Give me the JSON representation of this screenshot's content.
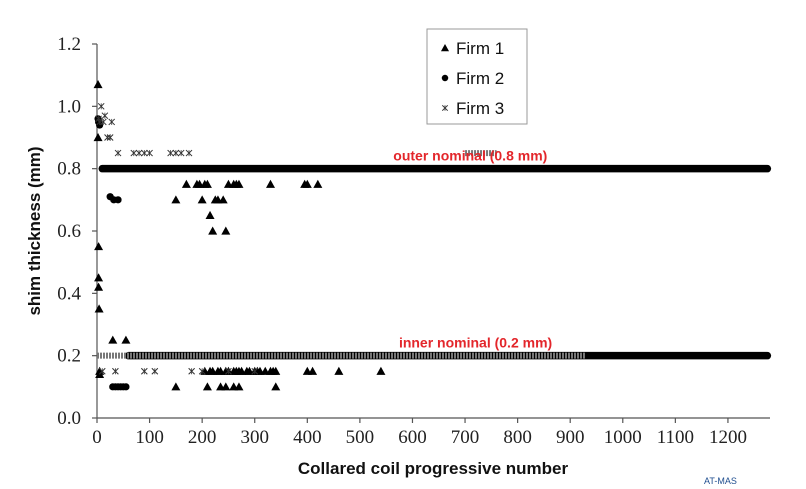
{
  "chart_data": {
    "type": "scatter",
    "xlabel": "Collared coil progressive number",
    "ylabel": "shim thickness (mm)",
    "xlim": [
      0,
      1280
    ],
    "ylim": [
      0,
      1.2
    ],
    "x_ticks": [
      "0",
      "100",
      "200",
      "300",
      "400",
      "500",
      "600",
      "700",
      "800",
      "900",
      "1000",
      "1100",
      "1200"
    ],
    "y_ticks": [
      "0.0",
      "0.2",
      "0.4",
      "0.6",
      "0.8",
      "1.0",
      "1.2"
    ],
    "grid": false,
    "legend_position": "top-center",
    "annotations": [
      {
        "text": "outer nominal (0.8 mm)",
        "x": 710,
        "y": 0.8
      },
      {
        "text": "inner nominal (0.2 mm)",
        "x": 720,
        "y": 0.2
      }
    ],
    "series": [
      {
        "name": "Firm 1",
        "marker": "triangle",
        "x": [
          2,
          2,
          3,
          3,
          3,
          4,
          5,
          5,
          30,
          55,
          150,
          170,
          190,
          195,
          200,
          205,
          210,
          215,
          220,
          225,
          230,
          240,
          245,
          250,
          260,
          265,
          270,
          330,
          395,
          400,
          420,
          150,
          205,
          215,
          220,
          230,
          235,
          245,
          250,
          260,
          265,
          270,
          275,
          285,
          290,
          300,
          305,
          310,
          320,
          330,
          335,
          340,
          400,
          410,
          460,
          540,
          210,
          235,
          245,
          260,
          270,
          340
        ],
        "y": [
          1.07,
          0.9,
          0.55,
          0.45,
          0.42,
          0.35,
          0.15,
          0.14,
          0.25,
          0.25,
          0.7,
          0.75,
          0.75,
          0.75,
          0.7,
          0.75,
          0.75,
          0.65,
          0.6,
          0.7,
          0.7,
          0.7,
          0.6,
          0.75,
          0.75,
          0.75,
          0.75,
          0.75,
          0.75,
          0.75,
          0.75,
          0.1,
          0.15,
          0.15,
          0.15,
          0.15,
          0.15,
          0.15,
          0.15,
          0.15,
          0.15,
          0.15,
          0.15,
          0.15,
          0.15,
          0.15,
          0.15,
          0.15,
          0.15,
          0.15,
          0.15,
          0.15,
          0.15,
          0.15,
          0.15,
          0.15,
          0.1,
          0.1,
          0.1,
          0.1,
          0.1,
          0.1
        ]
      },
      {
        "name": "Firm 2",
        "marker": "circle",
        "x": [
          2,
          3,
          5,
          25,
          32,
          40,
          30,
          35,
          40,
          45,
          50,
          55
        ],
        "y": [
          0.96,
          0.95,
          0.94,
          0.71,
          0.7,
          0.7,
          0.1,
          0.1,
          0.1,
          0.1,
          0.1,
          0.1
        ],
        "baseline_runs": [
          {
            "y": 0.8,
            "x_start": 10,
            "x_end": 1275
          },
          {
            "y": 0.2,
            "x_start": 60,
            "x_end": 1275
          }
        ]
      },
      {
        "name": "Firm 3",
        "marker": "x",
        "x": [
          3,
          5,
          8,
          12,
          15,
          20,
          25,
          28,
          40,
          70,
          80,
          90,
          100,
          140,
          150,
          160,
          175,
          10,
          35,
          90,
          110,
          180,
          200,
          250,
          300
        ],
        "y": [
          0.96,
          0.95,
          1.0,
          0.95,
          0.97,
          0.9,
          0.9,
          0.95,
          0.85,
          0.85,
          0.85,
          0.85,
          0.85,
          0.85,
          0.85,
          0.85,
          0.85,
          0.15,
          0.15,
          0.15,
          0.15,
          0.15,
          0.15,
          0.15,
          0.15
        ],
        "baseline_runs": [
          {
            "y": 0.2,
            "x_start": 0,
            "x_end": 930
          },
          {
            "y": 0.85,
            "x_start": 700,
            "x_end": 760
          }
        ]
      }
    ]
  },
  "footer_label": "AT-MAS"
}
